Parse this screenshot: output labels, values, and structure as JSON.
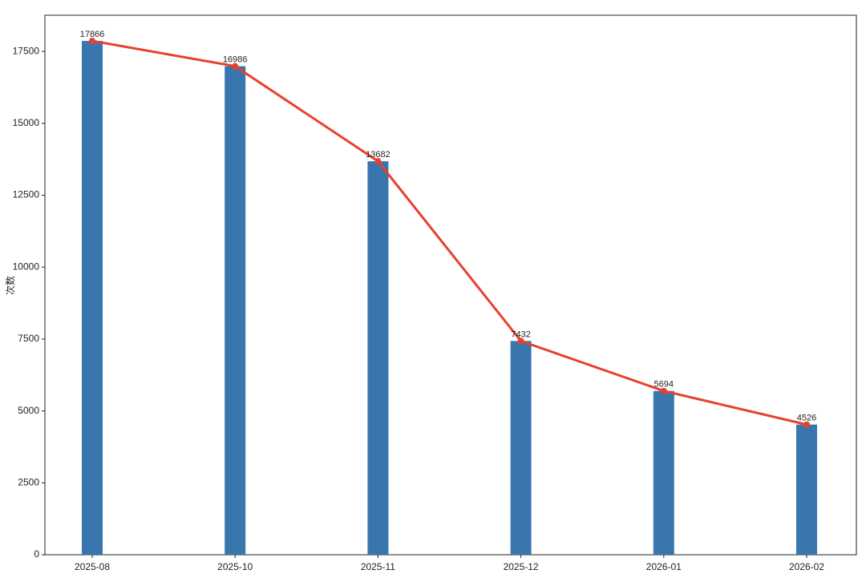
{
  "chart_data": {
    "type": "bar",
    "y_label": "次数",
    "categories": [
      "2025-08",
      "2025-10",
      "2025-11",
      "2025-12",
      "2026-01",
      "2026-02"
    ],
    "series": [
      {
        "type": "bar",
        "color": "#3a76ae",
        "values": [
          17866,
          16986,
          13682,
          7432,
          5694,
          4526
        ]
      },
      {
        "type": "line",
        "color": "#e8402f",
        "values": [
          17866,
          16986,
          13682,
          7432,
          5694,
          4526
        ]
      }
    ],
    "ylim": [
      0,
      18759
    ],
    "yticks": [
      0,
      2500,
      5000,
      7500,
      10000,
      12500,
      15000,
      17500
    ],
    "grid": false
  }
}
